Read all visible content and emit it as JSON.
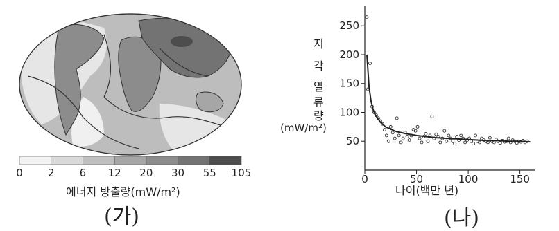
{
  "panel_a": {
    "label": "(가)",
    "legend_title": "에너지 방출량(mW/m²)",
    "legend_ticks": [
      "0",
      "2",
      "6",
      "12",
      "20",
      "30",
      "55",
      "105"
    ],
    "legend_colors": [
      "#f2f2f2",
      "#d9d9d9",
      "#bfbfbf",
      "#a6a6a6",
      "#8c8c8c",
      "#737373",
      "#4d4d4d"
    ]
  },
  "panel_b": {
    "label": "(나)",
    "y_label_chars": [
      "지",
      "각",
      "열",
      "류",
      "량"
    ],
    "y_unit": "(mW/m²)",
    "x_label": "나이(백만 년)"
  },
  "chart_data": {
    "type": "scatter",
    "xlabel": "나이(백만 년)",
    "ylabel": "지각 열류량 (mW/m²)",
    "xlim": [
      0,
      165
    ],
    "ylim": [
      0,
      285
    ],
    "x_ticks": [
      0,
      50,
      100,
      150
    ],
    "y_ticks": [
      50,
      100,
      150,
      200,
      250
    ],
    "series": [
      {
        "kind": "points",
        "x": [
          2,
          3,
          5,
          7,
          9,
          11,
          13,
          15,
          17,
          19,
          21,
          23,
          25,
          27,
          29,
          31,
          33,
          35,
          37,
          39,
          41,
          43,
          45,
          47,
          49,
          51,
          53,
          55,
          57,
          59,
          61,
          63,
          65,
          67,
          69,
          71,
          73,
          75,
          77,
          79,
          81,
          83,
          85,
          87,
          89,
          91,
          93,
          95,
          97,
          99,
          101,
          103,
          105,
          107,
          109,
          111,
          113,
          115,
          117,
          119,
          121,
          123,
          125,
          127,
          129,
          131,
          133,
          135,
          137,
          139,
          141,
          143,
          145,
          147,
          149,
          151,
          153,
          155,
          157
        ],
        "y": [
          265,
          140,
          185,
          110,
          100,
          95,
          90,
          85,
          80,
          70,
          60,
          50,
          75,
          65,
          55,
          90,
          60,
          48,
          55,
          65,
          58,
          52,
          60,
          70,
          68,
          75,
          55,
          48,
          58,
          63,
          50,
          60,
          93,
          55,
          62,
          58,
          48,
          55,
          68,
          50,
          60,
          55,
          50,
          46,
          58,
          52,
          60,
          55,
          48,
          52,
          55,
          50,
          46,
          60,
          50,
          48,
          55,
          52,
          50,
          48,
          56,
          50,
          48,
          53,
          50,
          47,
          51,
          49,
          50,
          55,
          48,
          52,
          50,
          47,
          50,
          49,
          51,
          48,
          50
        ]
      },
      {
        "kind": "fit_line",
        "x": [
          2,
          4,
          6,
          8,
          10,
          15,
          20,
          30,
          40,
          50,
          60,
          70,
          80,
          90,
          100,
          110,
          120,
          130,
          140,
          150,
          160
        ],
        "y": [
          200,
          145,
          120,
          105,
          96,
          83,
          75,
          67,
          63,
          60,
          58,
          56,
          55,
          54,
          53,
          52,
          51,
          51,
          50,
          50,
          49
        ]
      }
    ]
  }
}
